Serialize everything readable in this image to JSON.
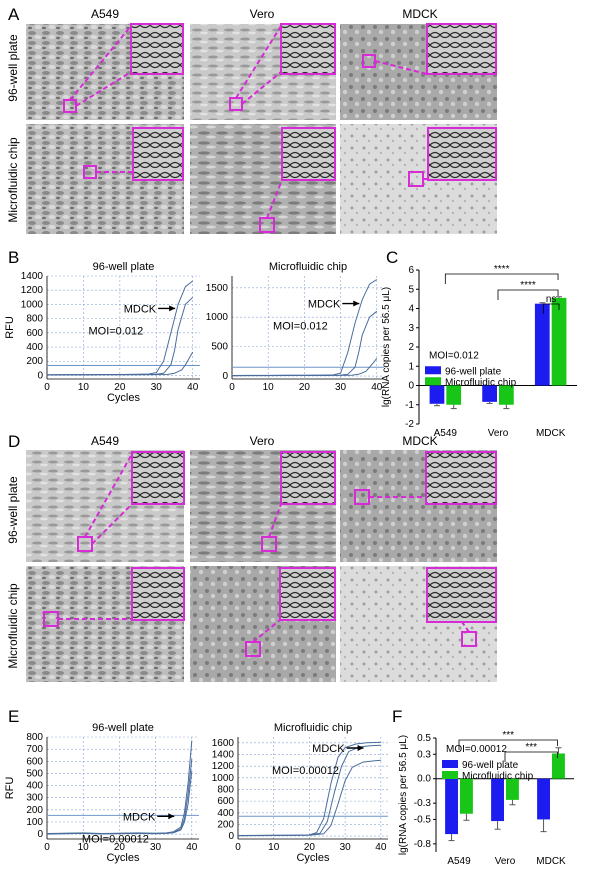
{
  "panels": {
    "A": {
      "letter": "A"
    },
    "B": {
      "letter": "B"
    },
    "C": {
      "letter": "C"
    },
    "D": {
      "letter": "D"
    },
    "E": {
      "letter": "E"
    },
    "F": {
      "letter": "F"
    }
  },
  "micrographs": {
    "top": {
      "columns": [
        "A549",
        "Vero",
        "MDCK"
      ],
      "rows": [
        "96-well plate",
        "Microfluidic chip"
      ]
    },
    "bottom": {
      "columns": [
        "A549",
        "Vero",
        "MDCK"
      ],
      "rows": [
        "96-well plate",
        "Microfluidic chip"
      ]
    }
  },
  "chart_data": [
    {
      "id": "B-left",
      "type": "line",
      "title": "96-well plate",
      "xlabel": "Cycles",
      "ylabel": "RFU",
      "xlim": [
        0,
        42
      ],
      "ylim": [
        -50,
        1400
      ],
      "xticks": [
        0,
        10,
        20,
        30,
        40
      ],
      "yticks": [
        0,
        200,
        400,
        600,
        800,
        1000,
        1200,
        1400
      ],
      "annotation": "MDCK",
      "moi": "MOI=0.012",
      "threshold": 140,
      "series": [
        {
          "x": [
            0,
            5,
            10,
            15,
            20,
            25,
            28,
            30,
            32,
            34,
            36,
            38,
            40
          ],
          "y": [
            10,
            12,
            12,
            14,
            14,
            16,
            20,
            40,
            200,
            600,
            1000,
            1250,
            1330
          ]
        },
        {
          "x": [
            0,
            5,
            10,
            15,
            20,
            25,
            30,
            32,
            34,
            35,
            36,
            38,
            40
          ],
          "y": [
            8,
            10,
            10,
            12,
            12,
            14,
            16,
            30,
            150,
            350,
            650,
            1000,
            1100
          ]
        },
        {
          "x": [
            0,
            5,
            10,
            15,
            20,
            25,
            30,
            33,
            35,
            37,
            38,
            39,
            40
          ],
          "y": [
            6,
            8,
            8,
            10,
            10,
            10,
            12,
            14,
            30,
            80,
            150,
            240,
            330
          ]
        }
      ],
      "x_grid": true,
      "y_grid": true
    },
    {
      "id": "B-right",
      "type": "line",
      "title": "Microfluidic chip",
      "xlabel": "",
      "ylabel": "",
      "xlim": [
        0,
        42
      ],
      "ylim": [
        -50,
        1700
      ],
      "xticks": [
        0,
        10,
        20,
        30,
        40
      ],
      "yticks": [
        0,
        500,
        1000,
        1500
      ],
      "annotation": "MDCK",
      "moi": "MOI=0.012",
      "threshold": 150,
      "series": [
        {
          "x": [
            0,
            5,
            10,
            15,
            20,
            25,
            28,
            30,
            32,
            34,
            36,
            38,
            40
          ],
          "y": [
            10,
            12,
            12,
            14,
            14,
            16,
            20,
            50,
            400,
            900,
            1300,
            1560,
            1640
          ]
        },
        {
          "x": [
            0,
            5,
            10,
            15,
            20,
            25,
            30,
            32,
            34,
            35,
            36,
            38,
            40
          ],
          "y": [
            8,
            10,
            10,
            12,
            12,
            14,
            16,
            30,
            150,
            400,
            700,
            1000,
            1100
          ]
        },
        {
          "x": [
            0,
            5,
            10,
            15,
            20,
            25,
            30,
            33,
            35,
            37,
            38,
            39,
            40
          ],
          "y": [
            6,
            8,
            8,
            10,
            10,
            10,
            12,
            14,
            30,
            80,
            150,
            220,
            300
          ]
        }
      ],
      "x_grid": true,
      "y_grid": true
    },
    {
      "id": "C",
      "type": "bar",
      "title": "",
      "xlabel": "",
      "ylabel": "lg(RNA copies per 56.5 μL)",
      "ylim": [
        -2,
        6
      ],
      "yticks": [
        -2,
        -1,
        0,
        1,
        2,
        3,
        4,
        5,
        6
      ],
      "categories": [
        "A549",
        "Vero",
        "MDCK"
      ],
      "series": [
        {
          "name": "96-well plate",
          "color": "#1c1cf0",
          "values": [
            -0.95,
            -0.85,
            4.25
          ],
          "errors": [
            0.1,
            0.08,
            0.05
          ]
        },
        {
          "name": "Microfluidic chip",
          "color": "#17c617",
          "values": [
            -1.0,
            -1.0,
            4.55
          ],
          "errors": [
            0.2,
            0.2,
            0.06
          ]
        }
      ],
      "moi": "MOI=0.012",
      "significance": [
        "****",
        "****",
        "ns"
      ],
      "legend": "center-left"
    },
    {
      "id": "E-left",
      "type": "line",
      "title": "96-well plate",
      "xlabel": "Cycles",
      "ylabel": "RFU",
      "xlim": [
        0,
        42
      ],
      "ylim": [
        -40,
        800
      ],
      "xticks": [
        0,
        10,
        20,
        30,
        40
      ],
      "yticks": [
        0,
        100,
        200,
        300,
        400,
        500,
        600,
        700,
        800
      ],
      "annotation": "MDCK",
      "moi": "MOI=0.00012",
      "threshold": 155,
      "series": [
        {
          "x": [
            0,
            5,
            10,
            15,
            20,
            25,
            30,
            33,
            35,
            37,
            38,
            39,
            40
          ],
          "y": [
            5,
            8,
            10,
            5,
            8,
            10,
            8,
            10,
            20,
            60,
            180,
            420,
            770
          ]
        },
        {
          "x": [
            0,
            5,
            10,
            15,
            20,
            25,
            30,
            33,
            35,
            37,
            38,
            39,
            40
          ],
          "y": [
            3,
            6,
            8,
            4,
            6,
            8,
            6,
            8,
            15,
            45,
            130,
            330,
            620
          ]
        },
        {
          "x": [
            0,
            5,
            10,
            15,
            20,
            25,
            30,
            33,
            35,
            37,
            38,
            39,
            40
          ],
          "y": [
            0,
            4,
            6,
            2,
            4,
            6,
            4,
            6,
            12,
            35,
            100,
            250,
            520
          ]
        }
      ],
      "x_grid": true,
      "y_grid": true
    },
    {
      "id": "E-right",
      "type": "line",
      "title": "Microfluidic chip",
      "xlabel": "Cycles",
      "ylabel": "",
      "xlim": [
        0,
        42
      ],
      "ylim": [
        -50,
        1700
      ],
      "xticks": [
        0,
        10,
        20,
        30,
        40
      ],
      "yticks": [
        0,
        200,
        400,
        600,
        800,
        1000,
        1200,
        1400,
        1600
      ],
      "annotation": "MDCK",
      "moi": "MOI=0.00012",
      "threshold": 340,
      "series": [
        {
          "x": [
            0,
            5,
            10,
            15,
            20,
            22,
            24,
            26,
            28,
            30,
            33,
            36,
            40
          ],
          "y": [
            10,
            12,
            14,
            16,
            20,
            60,
            300,
            900,
            1350,
            1520,
            1580,
            1600,
            1610
          ]
        },
        {
          "x": [
            0,
            5,
            10,
            15,
            20,
            23,
            25,
            27,
            29,
            31,
            34,
            37,
            40
          ],
          "y": [
            8,
            10,
            12,
            14,
            18,
            50,
            250,
            750,
            1200,
            1450,
            1530,
            1550,
            1560
          ]
        },
        {
          "x": [
            0,
            5,
            10,
            15,
            20,
            24,
            26,
            28,
            30,
            32,
            35,
            38,
            40
          ],
          "y": [
            6,
            8,
            10,
            12,
            16,
            40,
            180,
            550,
            950,
            1180,
            1270,
            1290,
            1300
          ]
        }
      ],
      "x_grid": true,
      "y_grid": true
    },
    {
      "id": "F",
      "type": "bar",
      "title": "",
      "xlabel": "",
      "ylabel": "lg(RNA copies per 56.5 μL)",
      "ylim": [
        -0.9,
        0.5
      ],
      "yticks": [
        -0.8,
        -0.5,
        -0.3,
        0.0,
        0.3,
        0.5
      ],
      "categories": [
        "A549",
        "Vero",
        "MDCK"
      ],
      "series": [
        {
          "name": "96-well plate",
          "color": "#1c1cf0",
          "values": [
            -0.68,
            -0.52,
            -0.5
          ],
          "errors": [
            0.08,
            0.1,
            0.15
          ]
        },
        {
          "name": "Microfluidic chip",
          "color": "#17c617",
          "values": [
            -0.43,
            -0.26,
            0.31
          ],
          "errors": [
            0.08,
            0.06,
            0.07
          ]
        }
      ],
      "moi": "MOI=0.00012",
      "significance": [
        "***",
        "***"
      ],
      "legend": "top-left"
    }
  ]
}
